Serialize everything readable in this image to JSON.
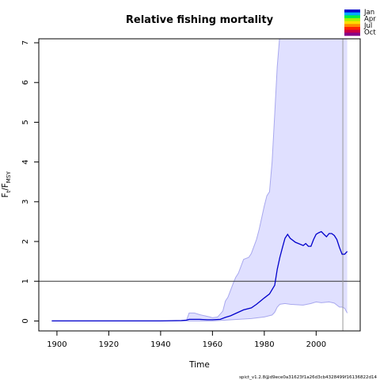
{
  "chart_data": {
    "type": "line",
    "title": "Relative fishing mortality",
    "xlabel": "Time",
    "ylabel_main": "F",
    "ylabel_sub1": "t",
    "ylabel_sep": "/F",
    "ylabel_sub2": "MSY",
    "xlim": [
      1893,
      2017
    ],
    "ylim": [
      -0.25,
      7.1
    ],
    "xticks": [
      1900,
      1920,
      1940,
      1960,
      1980,
      2000
    ],
    "yticks": [
      0,
      1,
      2,
      3,
      4,
      5,
      6,
      7
    ],
    "reference_line": 1,
    "vertical_marker_x": 2010.3,
    "legend": [
      "Jan",
      "Apr",
      "Jul",
      "Oct"
    ],
    "legend_colors": [
      "#0000cc",
      "#00aaff",
      "#00ee44",
      "#aaee00",
      "#ffdd00",
      "#ff8800",
      "#ff2200",
      "#cc0044",
      "#880088"
    ],
    "footnote": "spict_v1.2.8@d9ece0a31623f1a26d3cb4328499f16136822d14",
    "colors": {
      "estimate": "#0000cc",
      "ci_fill": "#e0e0ff",
      "ci_line": "#a8a8ee"
    },
    "series": [
      {
        "role": "estimate",
        "x": [
          1898,
          1910,
          1920,
          1930,
          1940,
          1948,
          1950,
          1951,
          1955,
          1958,
          1960,
          1963,
          1965,
          1967,
          1969,
          1970,
          1972,
          1975,
          1977,
          1980,
          1982,
          1984,
          1985,
          1986,
          1987,
          1988,
          1989,
          1990,
          1992,
          1995,
          1996,
          1997,
          1998,
          1999,
          2000,
          2001,
          2002,
          2003,
          2004,
          2005,
          2006,
          2007,
          2008,
          2009,
          2010,
          2011,
          2012
        ],
        "y": [
          0,
          0,
          0,
          0,
          0,
          0.01,
          0.02,
          0.04,
          0.04,
          0.03,
          0.03,
          0.04,
          0.09,
          0.13,
          0.19,
          0.22,
          0.28,
          0.33,
          0.42,
          0.58,
          0.68,
          0.9,
          1.3,
          1.6,
          1.85,
          2.08,
          2.18,
          2.08,
          1.98,
          1.9,
          1.95,
          1.88,
          1.88,
          2.05,
          2.18,
          2.22,
          2.25,
          2.18,
          2.12,
          2.2,
          2.2,
          2.15,
          2.05,
          1.85,
          1.68,
          1.68,
          1.75
        ]
      },
      {
        "role": "ci_upper",
        "x": [
          1898,
          1948,
          1950,
          1951,
          1953,
          1955,
          1957,
          1959,
          1960,
          1962,
          1964,
          1965,
          1966,
          1968,
          1969,
          1970,
          1972,
          1974,
          1975,
          1977,
          1978,
          1980,
          1981,
          1982,
          1983,
          1984,
          1985,
          1986,
          2010.5,
          2011.5,
          2012
        ],
        "y": [
          0,
          0,
          0.02,
          0.2,
          0.2,
          0.16,
          0.13,
          0.1,
          0.08,
          0.1,
          0.25,
          0.5,
          0.6,
          0.95,
          1.1,
          1.2,
          1.55,
          1.6,
          1.7,
          2.05,
          2.3,
          2.9,
          3.15,
          3.25,
          4.0,
          5.2,
          6.4,
          7.2,
          7.2,
          7.2,
          7.2
        ]
      },
      {
        "role": "ci_lower",
        "x": [
          1898,
          1948,
          1950,
          1955,
          1960,
          1965,
          1970,
          1975,
          1980,
          1983,
          1984,
          1985,
          1986,
          1988,
          1990,
          1995,
          1998,
          2000,
          2002,
          2005,
          2007,
          2009,
          2010,
          2011,
          2012
        ],
        "y": [
          0,
          0,
          0,
          0,
          0,
          0.02,
          0.04,
          0.06,
          0.1,
          0.15,
          0.22,
          0.35,
          0.42,
          0.44,
          0.42,
          0.4,
          0.44,
          0.48,
          0.46,
          0.48,
          0.45,
          0.35,
          0.35,
          0.32,
          0.2
        ]
      }
    ]
  }
}
